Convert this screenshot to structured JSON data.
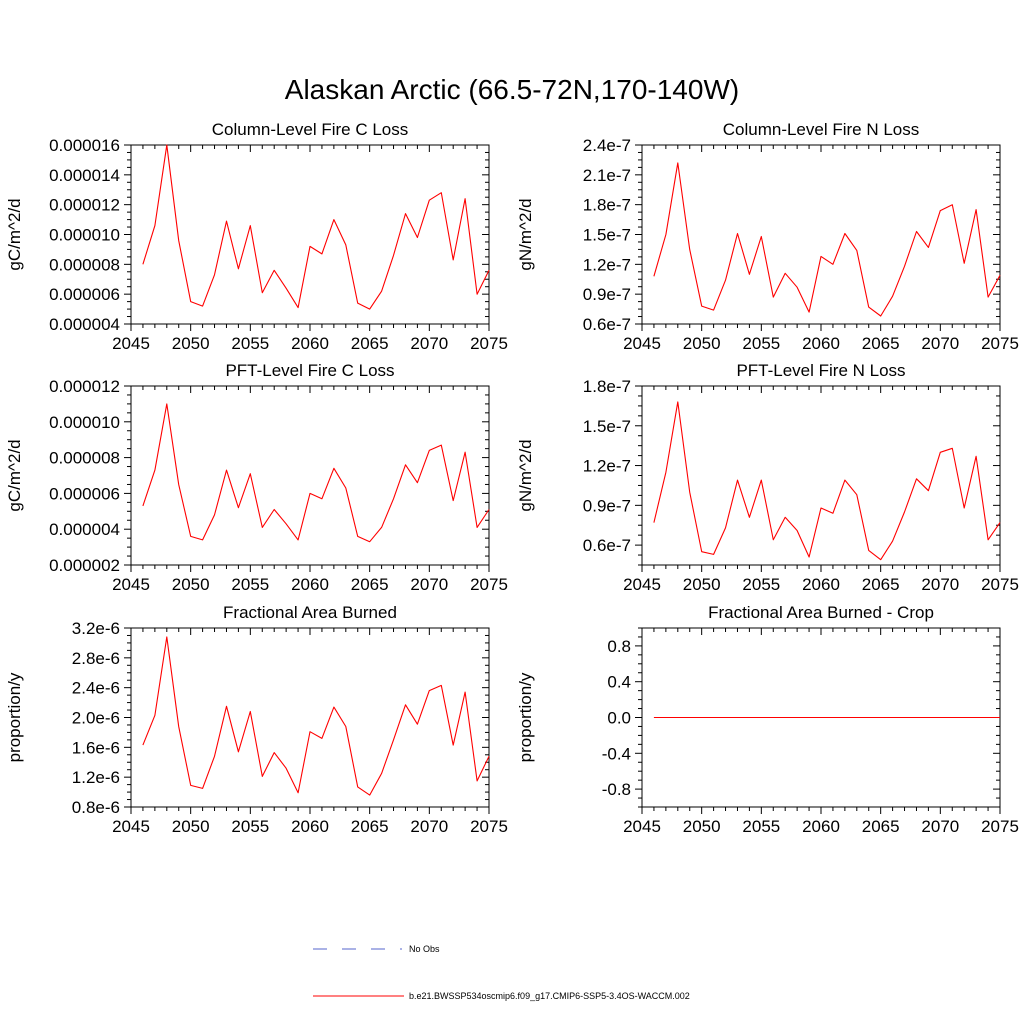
{
  "figure_title": "Alaskan Arctic (66.5-72N,170-140W)",
  "legend": [
    {
      "label": "No Obs",
      "color": "#5566cc",
      "style": "dashed"
    },
    {
      "label": "b.e21.BWSSP534oscmip6.f09_g17.CMIP6-SSP5-3.4OS-WACCM.002",
      "color": "#ff0000",
      "style": "solid"
    }
  ],
  "chart_data": [
    {
      "type": "line",
      "title": "Column-Level Fire C Loss",
      "xlabel": "",
      "ylabel": "gC/m^2/d",
      "xlim": [
        2045,
        2075
      ],
      "ylim": [
        4e-06,
        1.6e-05
      ],
      "xticks": [
        2045,
        2050,
        2055,
        2060,
        2065,
        2070,
        2075
      ],
      "xtick_labels": [
        "2045",
        "2050",
        "2055",
        "2060",
        "2065",
        "2070",
        "2075"
      ],
      "yticks": [
        4e-06,
        6e-06,
        8e-06,
        1e-05,
        1.2e-05,
        1.4e-05,
        1.6e-05
      ],
      "ytick_labels": [
        "0.000004",
        "0.000006",
        "0.000008",
        "0.000010",
        "0.000012",
        "0.000014",
        "0.000016"
      ],
      "x": [
        2046,
        2047,
        2048,
        2049,
        2050,
        2051,
        2052,
        2053,
        2054,
        2055,
        2056,
        2057,
        2058,
        2059,
        2060,
        2061,
        2062,
        2063,
        2064,
        2065,
        2066,
        2067,
        2068,
        2069,
        2070,
        2071,
        2072,
        2073,
        2074,
        2075
      ],
      "series": [
        {
          "name": "b.e21.BWSSP534oscmip6.f09_g17.CMIP6-SSP5-3.4OS-WACCM.002",
          "color": "#ff0000",
          "values": [
            8e-06,
            1.06e-05,
            1.6e-05,
            9.6e-06,
            5.5e-06,
            5.2e-06,
            7.3e-06,
            1.09e-05,
            7.7e-06,
            1.06e-05,
            6.1e-06,
            7.6e-06,
            6.4e-06,
            5.1e-06,
            9.2e-06,
            8.7e-06,
            1.1e-05,
            9.3e-06,
            5.4e-06,
            5e-06,
            6.2e-06,
            8.6e-06,
            1.14e-05,
            9.8e-06,
            1.23e-05,
            1.28e-05,
            8.3e-06,
            1.24e-05,
            6e-06,
            7.6e-06
          ]
        }
      ]
    },
    {
      "type": "line",
      "title": "Column-Level Fire N Loss",
      "xlabel": "",
      "ylabel": "gN/m^2/d",
      "xlim": [
        2045,
        2075
      ],
      "ylim": [
        6e-08,
        2.4e-07
      ],
      "xticks": [
        2045,
        2050,
        2055,
        2060,
        2065,
        2070,
        2075
      ],
      "xtick_labels": [
        "2045",
        "2050",
        "2055",
        "2060",
        "2065",
        "2070",
        "2075"
      ],
      "yticks": [
        6e-08,
        9e-08,
        1.2e-07,
        1.5e-07,
        1.8e-07,
        2.1e-07,
        2.4e-07
      ],
      "ytick_labels": [
        "0.6e-7",
        "0.9e-7",
        "1.2e-7",
        "1.5e-7",
        "1.8e-7",
        "2.1e-7",
        "2.4e-7"
      ],
      "x": [
        2046,
        2047,
        2048,
        2049,
        2050,
        2051,
        2052,
        2053,
        2054,
        2055,
        2056,
        2057,
        2058,
        2059,
        2060,
        2061,
        2062,
        2063,
        2064,
        2065,
        2066,
        2067,
        2068,
        2069,
        2070,
        2071,
        2072,
        2073,
        2074,
        2075
      ],
      "series": [
        {
          "name": "b.e21.BWSSP534oscmip6.f09_g17.CMIP6-SSP5-3.4OS-WACCM.002",
          "color": "#ff0000",
          "values": [
            1.08e-07,
            1.5e-07,
            2.22e-07,
            1.35e-07,
            7.8e-08,
            7.4e-08,
            1.04e-07,
            1.51e-07,
            1.1e-07,
            1.48e-07,
            8.7e-08,
            1.11e-07,
            9.7e-08,
            7.2e-08,
            1.28e-07,
            1.2e-07,
            1.51e-07,
            1.34e-07,
            7.7e-08,
            6.8e-08,
            8.8e-08,
            1.18e-07,
            1.53e-07,
            1.37e-07,
            1.74e-07,
            1.8e-07,
            1.21e-07,
            1.75e-07,
            8.7e-08,
            1.09e-07
          ]
        }
      ]
    },
    {
      "type": "line",
      "title": "PFT-Level Fire C Loss",
      "xlabel": "",
      "ylabel": "gC/m^2/d",
      "xlim": [
        2045,
        2075
      ],
      "ylim": [
        2e-06,
        1.2e-05
      ],
      "xticks": [
        2045,
        2050,
        2055,
        2060,
        2065,
        2070,
        2075
      ],
      "xtick_labels": [
        "2045",
        "2050",
        "2055",
        "2060",
        "2065",
        "2070",
        "2075"
      ],
      "yticks": [
        2e-06,
        4e-06,
        6e-06,
        8e-06,
        1e-05,
        1.2e-05
      ],
      "ytick_labels": [
        "0.000002",
        "0.000004",
        "0.000006",
        "0.000008",
        "0.000010",
        "0.000012"
      ],
      "x": [
        2046,
        2047,
        2048,
        2049,
        2050,
        2051,
        2052,
        2053,
        2054,
        2055,
        2056,
        2057,
        2058,
        2059,
        2060,
        2061,
        2062,
        2063,
        2064,
        2065,
        2066,
        2067,
        2068,
        2069,
        2070,
        2071,
        2072,
        2073,
        2074,
        2075
      ],
      "series": [
        {
          "name": "b.e21.BWSSP534oscmip6.f09_g17.CMIP6-SSP5-3.4OS-WACCM.002",
          "color": "#ff0000",
          "values": [
            5.3e-06,
            7.3e-06,
            1.1e-05,
            6.5e-06,
            3.6e-06,
            3.4e-06,
            4.8e-06,
            7.3e-06,
            5.2e-06,
            7.1e-06,
            4.1e-06,
            5.1e-06,
            4.3e-06,
            3.4e-06,
            6e-06,
            5.7e-06,
            7.4e-06,
            6.3e-06,
            3.6e-06,
            3.3e-06,
            4.1e-06,
            5.7e-06,
            7.6e-06,
            6.6e-06,
            8.4e-06,
            8.7e-06,
            5.6e-06,
            8.3e-06,
            4.1e-06,
            5.1e-06
          ]
        }
      ]
    },
    {
      "type": "line",
      "title": "PFT-Level Fire N Loss",
      "xlabel": "",
      "ylabel": "gN/m^2/d",
      "xlim": [
        2045,
        2075
      ],
      "ylim": [
        4.5e-08,
        1.8e-07
      ],
      "xticks": [
        2045,
        2050,
        2055,
        2060,
        2065,
        2070,
        2075
      ],
      "xtick_labels": [
        "2045",
        "2050",
        "2055",
        "2060",
        "2065",
        "2070",
        "2075"
      ],
      "yticks": [
        6e-08,
        9e-08,
        1.2e-07,
        1.5e-07,
        1.8e-07
      ],
      "ytick_labels": [
        "0.6e-7",
        "0.9e-7",
        "1.2e-7",
        "1.5e-7",
        "1.8e-7"
      ],
      "x": [
        2046,
        2047,
        2048,
        2049,
        2050,
        2051,
        2052,
        2053,
        2054,
        2055,
        2056,
        2057,
        2058,
        2059,
        2060,
        2061,
        2062,
        2063,
        2064,
        2065,
        2066,
        2067,
        2068,
        2069,
        2070,
        2071,
        2072,
        2073,
        2074,
        2075
      ],
      "series": [
        {
          "name": "b.e21.BWSSP534oscmip6.f09_g17.CMIP6-SSP5-3.4OS-WACCM.002",
          "color": "#ff0000",
          "values": [
            7.7e-08,
            1.15e-07,
            1.68e-07,
            1e-07,
            5.5e-08,
            5.3e-08,
            7.3e-08,
            1.09e-07,
            8.1e-08,
            1.09e-07,
            6.4e-08,
            8.1e-08,
            7.1e-08,
            5.1e-08,
            8.8e-08,
            8.4e-08,
            1.09e-07,
            9.8e-08,
            5.6e-08,
            4.9e-08,
            6.3e-08,
            8.5e-08,
            1.1e-07,
            1.01e-07,
            1.3e-07,
            1.33e-07,
            8.8e-08,
            1.27e-07,
            6.4e-08,
            7.7e-08
          ]
        }
      ]
    },
    {
      "type": "line",
      "title": "Fractional Area Burned",
      "xlabel": "",
      "ylabel": "proportion/y",
      "xlim": [
        2045,
        2075
      ],
      "ylim": [
        8e-07,
        3.2e-06
      ],
      "xticks": [
        2045,
        2050,
        2055,
        2060,
        2065,
        2070,
        2075
      ],
      "xtick_labels": [
        "2045",
        "2050",
        "2055",
        "2060",
        "2065",
        "2070",
        "2075"
      ],
      "yticks": [
        8e-07,
        1.2e-06,
        1.6e-06,
        2e-06,
        2.4e-06,
        2.8e-06,
        3.2e-06
      ],
      "ytick_labels": [
        "0.8e-6",
        "1.2e-6",
        "1.6e-6",
        "2.0e-6",
        "2.4e-6",
        "2.8e-6",
        "3.2e-6"
      ],
      "x": [
        2046,
        2047,
        2048,
        2049,
        2050,
        2051,
        2052,
        2053,
        2054,
        2055,
        2056,
        2057,
        2058,
        2059,
        2060,
        2061,
        2062,
        2063,
        2064,
        2065,
        2066,
        2067,
        2068,
        2069,
        2070,
        2071,
        2072,
        2073,
        2074,
        2075
      ],
      "series": [
        {
          "name": "b.e21.BWSSP534oscmip6.f09_g17.CMIP6-SSP5-3.4OS-WACCM.002",
          "color": "#ff0000",
          "values": [
            1.63e-06,
            2.03e-06,
            3.08e-06,
            1.88e-06,
            1.09e-06,
            1.05e-06,
            1.48e-06,
            2.15e-06,
            1.54e-06,
            2.08e-06,
            1.21e-06,
            1.53e-06,
            1.32e-06,
            9.9e-07,
            1.81e-06,
            1.72e-06,
            2.14e-06,
            1.88e-06,
            1.07e-06,
            9.6e-07,
            1.25e-06,
            1.7e-06,
            2.17e-06,
            1.91e-06,
            2.36e-06,
            2.43e-06,
            1.63e-06,
            2.34e-06,
            1.15e-06,
            1.48e-06
          ]
        }
      ]
    },
    {
      "type": "line",
      "title": "Fractional Area Burned - Crop",
      "xlabel": "",
      "ylabel": "proportion/y",
      "xlim": [
        2045,
        2075
      ],
      "ylim": [
        -1.0,
        1.0
      ],
      "xticks": [
        2045,
        2050,
        2055,
        2060,
        2065,
        2070,
        2075
      ],
      "xtick_labels": [
        "2045",
        "2050",
        "2055",
        "2060",
        "2065",
        "2070",
        "2075"
      ],
      "yticks": [
        -0.8,
        -0.4,
        0.0,
        0.4,
        0.8
      ],
      "ytick_labels": [
        "-0.8",
        "-0.4",
        "0.0",
        "0.4",
        "0.8"
      ],
      "x": [
        2046,
        2047,
        2048,
        2049,
        2050,
        2051,
        2052,
        2053,
        2054,
        2055,
        2056,
        2057,
        2058,
        2059,
        2060,
        2061,
        2062,
        2063,
        2064,
        2065,
        2066,
        2067,
        2068,
        2069,
        2070,
        2071,
        2072,
        2073,
        2074,
        2075
      ],
      "series": [
        {
          "name": "b.e21.BWSSP534oscmip6.f09_g17.CMIP6-SSP5-3.4OS-WACCM.002",
          "color": "#ff0000",
          "values": [
            0,
            0,
            0,
            0,
            0,
            0,
            0,
            0,
            0,
            0,
            0,
            0,
            0,
            0,
            0,
            0,
            0,
            0,
            0,
            0,
            0,
            0,
            0,
            0,
            0,
            0,
            0,
            0,
            0,
            0
          ]
        }
      ]
    }
  ]
}
